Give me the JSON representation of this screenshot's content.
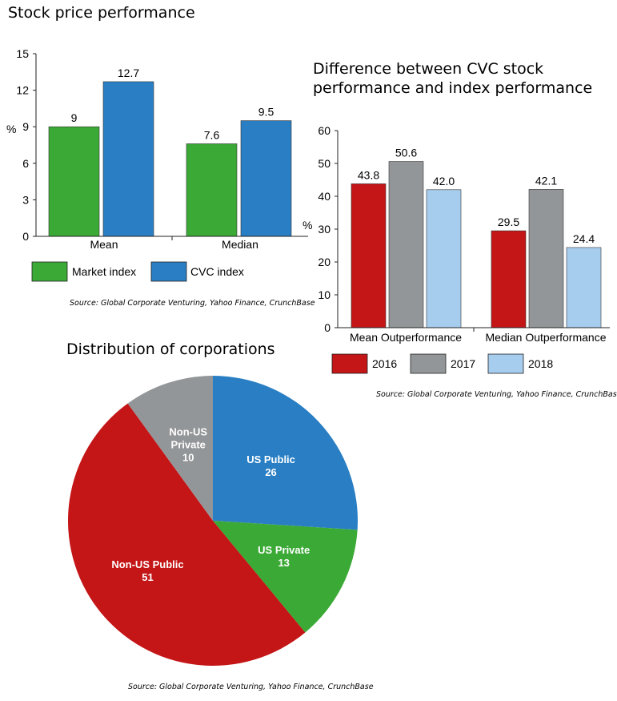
{
  "chart_data": [
    {
      "type": "bar",
      "title": "Stock price performance",
      "ylabel": "%",
      "ylim": [
        0,
        15
      ],
      "yticks": [
        0,
        3,
        6,
        9,
        12,
        15
      ],
      "categories": [
        "Mean",
        "Median"
      ],
      "series": [
        {
          "name": "Market index",
          "color": "#3ba935",
          "values": [
            9,
            7.6
          ],
          "labels": [
            "9",
            "7.6"
          ]
        },
        {
          "name": "CVC index",
          "color": "#2a7fc4",
          "values": [
            12.7,
            9.5
          ],
          "labels": [
            "12.7",
            "9.5"
          ]
        }
      ],
      "legend": "bottom",
      "source": "Source: Global Corporate Venturing, Yahoo Finance, CrunchBase"
    },
    {
      "type": "bar",
      "title": "Difference between CVC stock performance and index performance",
      "title_lines": [
        "Difference between CVC stock",
        "performance and index performance"
      ],
      "ylabel": "%",
      "ylim": [
        0,
        60
      ],
      "yticks": [
        0,
        10,
        20,
        30,
        40,
        50,
        60
      ],
      "categories": [
        "Mean Outperformance",
        "Median Outperformance"
      ],
      "series": [
        {
          "name": "2016",
          "color": "#c41517",
          "values": [
            43.8,
            29.5
          ],
          "labels": [
            "43.8",
            "29.5"
          ]
        },
        {
          "name": "2017",
          "color": "#939698",
          "values": [
            50.6,
            42.1
          ],
          "labels": [
            "50.6",
            "42.1"
          ]
        },
        {
          "name": "2018",
          "color": "#a6cdee",
          "values": [
            42.0,
            24.4
          ],
          "labels": [
            "42.0",
            "24.4"
          ]
        }
      ],
      "legend": "bottom",
      "source": "Source: Global Corporate Venturing, Yahoo Finance, CrunchBase"
    },
    {
      "type": "pie",
      "title": "Distribution of corporations",
      "slices": [
        {
          "label": "US Public",
          "lines": [
            "US Public"
          ],
          "value": 26,
          "value_label": "26",
          "color": "#2a7fc4"
        },
        {
          "label": "US Private",
          "lines": [
            "US Private"
          ],
          "value": 13,
          "value_label": "13",
          "color": "#3ba935"
        },
        {
          "label": "Non-US Public",
          "lines": [
            "Non-US Public"
          ],
          "value": 51,
          "value_label": "51",
          "color": "#c41517"
        },
        {
          "label": "Non-US Private",
          "lines": [
            "Non-US",
            "Private"
          ],
          "value": 10,
          "value_label": "10",
          "color": "#939698"
        }
      ],
      "source": "Source: Global Corporate Venturing, Yahoo Finance, CrunchBase"
    }
  ]
}
